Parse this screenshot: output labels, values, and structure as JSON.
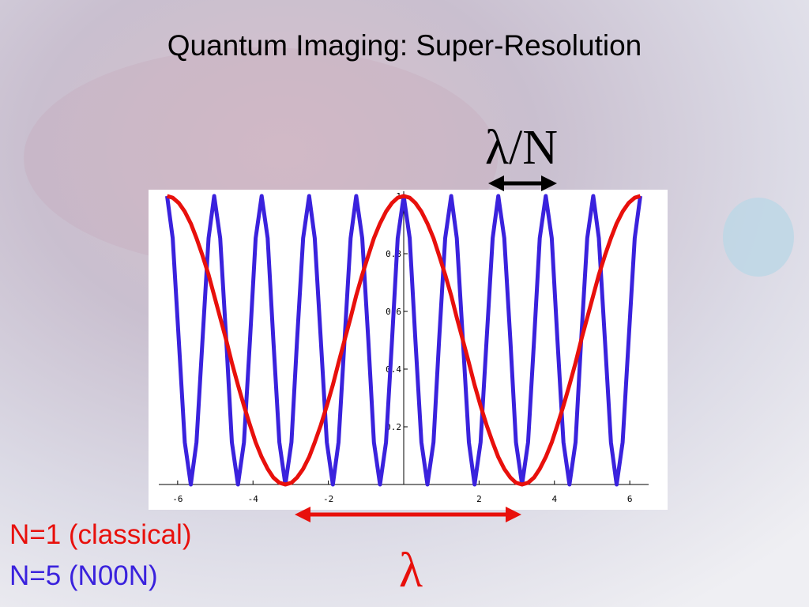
{
  "chart_data": {
    "type": "line",
    "title": "Quantum Imaging: Super-Resolution",
    "annotations": [
      "λ/N",
      "λ"
    ],
    "x": [
      -6.28,
      -6.13,
      -5.97,
      -5.81,
      -5.65,
      -5.5,
      -5.34,
      -5.18,
      -5.03,
      -4.87,
      -4.71,
      -4.56,
      -4.4,
      -4.24,
      -4.08,
      -3.93,
      -3.77,
      -3.61,
      -3.46,
      -3.3,
      -3.14,
      -2.98,
      -2.83,
      -2.67,
      -2.51,
      -2.36,
      -2.2,
      -2.04,
      -1.88,
      -1.73,
      -1.57,
      -1.41,
      -1.26,
      -1.1,
      -0.94,
      -0.79,
      -0.63,
      -0.47,
      -0.31,
      -0.16,
      0,
      0.16,
      0.31,
      0.47,
      0.63,
      0.79,
      0.94,
      1.1,
      1.26,
      1.41,
      1.57,
      1.73,
      1.88,
      2.04,
      2.2,
      2.36,
      2.51,
      2.67,
      2.83,
      2.98,
      3.14,
      3.3,
      3.46,
      3.61,
      3.77,
      3.93,
      4.08,
      4.24,
      4.4,
      4.56,
      4.71,
      4.87,
      5.03,
      5.18,
      5.34,
      5.5,
      5.65,
      5.81,
      5.97,
      6.13,
      6.28
    ],
    "series": [
      {
        "name": "N=5 (N00N)",
        "color": "#3a22dd",
        "values": [
          1,
          0.854,
          0.5,
          0.146,
          0,
          0.146,
          0.5,
          0.854,
          1,
          0.854,
          0.5,
          0.146,
          0,
          0.146,
          0.5,
          0.854,
          1,
          0.854,
          0.5,
          0.146,
          0,
          0.146,
          0.5,
          0.854,
          1,
          0.854,
          0.5,
          0.146,
          0,
          0.146,
          0.5,
          0.854,
          1,
          0.854,
          0.5,
          0.146,
          0,
          0.146,
          0.5,
          0.854,
          1,
          0.854,
          0.5,
          0.146,
          0,
          0.146,
          0.5,
          0.854,
          1,
          0.854,
          0.5,
          0.146,
          0,
          0.146,
          0.5,
          0.854,
          1,
          0.854,
          0.5,
          0.146,
          0,
          0.146,
          0.5,
          0.854,
          1,
          0.854,
          0.5,
          0.146,
          0,
          0.146,
          0.5,
          0.854,
          1,
          0.854,
          0.5,
          0.146,
          0,
          0.146,
          0.5,
          0.854,
          1
        ]
      },
      {
        "name": "N=1 (classical)",
        "color": "#e8100c",
        "values": [
          1,
          0.994,
          0.976,
          0.946,
          0.905,
          0.854,
          0.794,
          0.727,
          0.655,
          0.578,
          0.5,
          0.422,
          0.345,
          0.273,
          0.206,
          0.146,
          0.095,
          0.054,
          0.024,
          0.006,
          0,
          0.006,
          0.024,
          0.054,
          0.095,
          0.146,
          0.206,
          0.273,
          0.345,
          0.422,
          0.5,
          0.578,
          0.655,
          0.727,
          0.794,
          0.854,
          0.905,
          0.946,
          0.976,
          0.994,
          1,
          0.994,
          0.976,
          0.946,
          0.905,
          0.854,
          0.794,
          0.727,
          0.655,
          0.578,
          0.5,
          0.422,
          0.345,
          0.273,
          0.206,
          0.146,
          0.095,
          0.054,
          0.024,
          0.006,
          0,
          0.006,
          0.024,
          0.054,
          0.095,
          0.146,
          0.206,
          0.273,
          0.345,
          0.422,
          0.5,
          0.578,
          0.655,
          0.727,
          0.794,
          0.854,
          0.905,
          0.946,
          0.976,
          0.994,
          1
        ]
      }
    ],
    "xlim": [
      -6.5,
      6.5
    ],
    "xticks": [
      -6,
      -4,
      -2,
      2,
      4,
      6
    ],
    "ylim": [
      0,
      1
    ],
    "yticks": [
      0.2,
      0.4,
      0.6,
      0.8,
      1
    ]
  }
}
